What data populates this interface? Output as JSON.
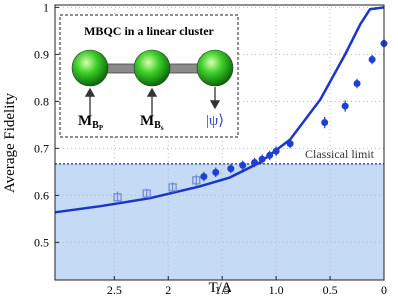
{
  "chart_data": {
    "type": "line",
    "xlabel": "T/Δ",
    "ylabel": "Average Fidelity",
    "xlim": [
      3.05,
      0
    ],
    "ylim": [
      0.42,
      1.005
    ],
    "xticks": [
      2.5,
      2,
      1.5,
      {
        "value": 1,
        "label": "1.0"
      },
      0.5,
      0
    ],
    "yticks": [
      0.5,
      0.6,
      0.7,
      0.8,
      0.9,
      1
    ],
    "grid": true,
    "classical_limit": {
      "value": 0.667,
      "label": "Classical limit",
      "color": "#c5daf5"
    },
    "series": [
      {
        "kind": "line",
        "color": "#1a35c8",
        "x": [
          3.05,
          2.63,
          2.17,
          1.71,
          1.43,
          1.15,
          0.87,
          0.59,
          0.36,
          0.22,
          0.13,
          0
        ],
        "values": [
          0.564,
          0.577,
          0.594,
          0.619,
          0.638,
          0.67,
          0.719,
          0.804,
          0.9,
          0.964,
          0.996,
          1.0
        ]
      },
      {
        "kind": "open",
        "color": "#6f86d8",
        "x": [
          2.47,
          2.2,
          1.96,
          1.74
        ],
        "values": [
          0.596,
          0.604,
          0.617,
          0.632
        ],
        "errors": [
          0.012,
          0.01,
          0.011,
          0.012
        ]
      },
      {
        "kind": "filled",
        "color": "#1f3fd0",
        "x": [
          1.67,
          1.56,
          1.42,
          1.31,
          1.2,
          1.13,
          1.06,
          1.0,
          0.87,
          0.55,
          0.36,
          0.25,
          0.11,
          0.0
        ],
        "values": [
          0.64,
          0.649,
          0.657,
          0.664,
          0.67,
          0.677,
          0.685,
          0.694,
          0.71,
          0.755,
          0.79,
          0.838,
          0.889,
          0.923
        ],
        "errors": [
          0.01,
          0.01,
          0.01,
          0.01,
          0.01,
          0.01,
          0.01,
          0.01,
          0.01,
          0.012,
          0.012,
          0.01,
          0.01,
          0.01
        ]
      }
    ],
    "inset": {
      "title": "MBQC in a linear cluster",
      "labels": [
        {
          "main": "M",
          "sub": "B",
          "subsub": "P"
        },
        {
          "main": "M",
          "sub": "B",
          "subsub": "s"
        },
        {
          "main": "|ψ⟩"
        }
      ]
    }
  }
}
